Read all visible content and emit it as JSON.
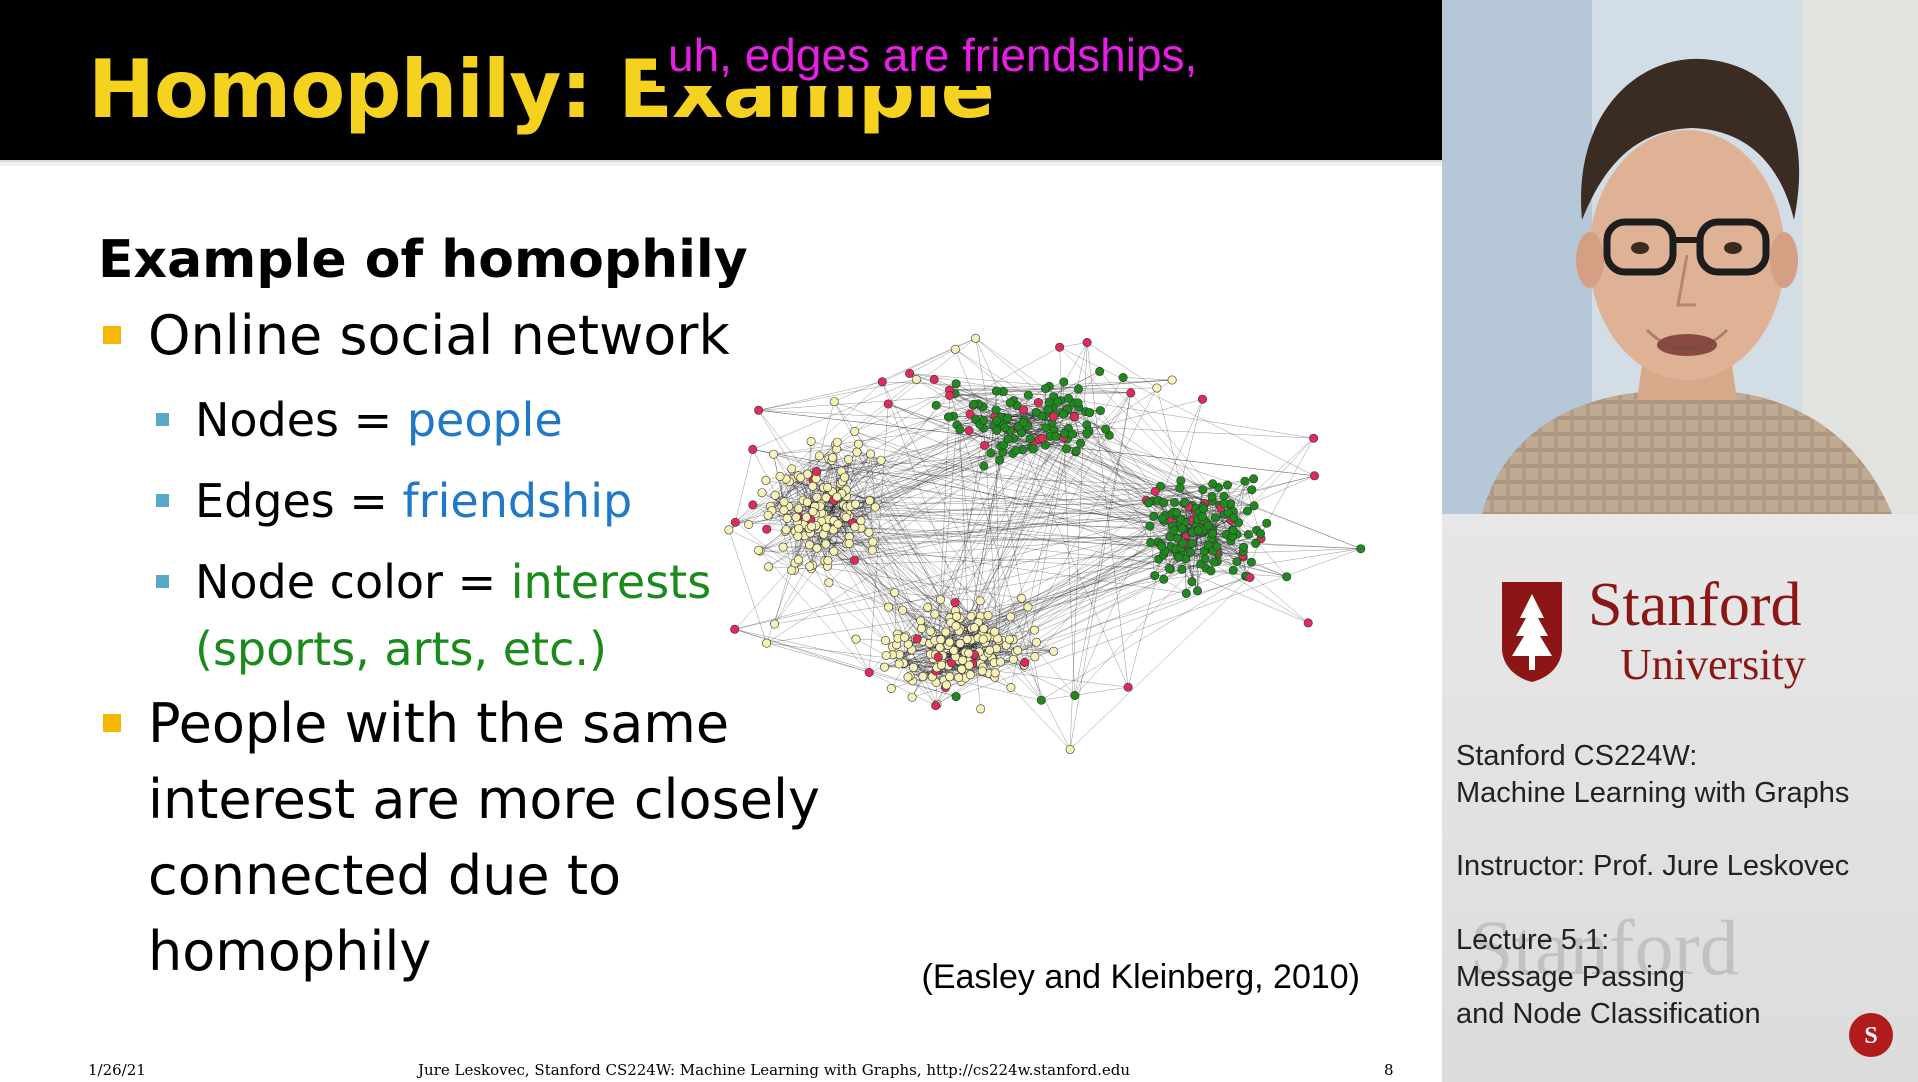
{
  "slide": {
    "title": "Homophily: Example",
    "caption": "uh, edges are friendships,",
    "heading": "Example of homophily",
    "bullets": {
      "b1": "Online social network",
      "nodes_prefix": "Nodes = ",
      "nodes_value": "people",
      "edges_prefix": "Edges = ",
      "edges_value": "friendship",
      "color_prefix": "Node color = ",
      "color_value": "interests",
      "color_value_line2": "(sports, arts, etc.)",
      "b2_line1": "People with the same",
      "b2_line2": "interest are more closely",
      "b2_line3": "connected due to",
      "b2_line4": "homophily"
    },
    "citation": "(Easley and Kleinberg, 2010)",
    "footer": {
      "date": "1/26/21",
      "center": "Jure Leskovec, Stanford CS224W: Machine Learning with Graphs, http://cs224w.stanford.edu",
      "page": "8"
    },
    "colors": {
      "title": "#f5d21f",
      "caption": "#e61ee6",
      "blue_text": "#1f78c8",
      "green_text": "#1a8a1a",
      "node_yellow": "#f7f1b5",
      "node_green": "#1e8a1e",
      "node_red": "#e02a5a"
    }
  },
  "panel": {
    "stanford_name": "Stanford",
    "stanford_univ": "University",
    "course_line1": "Stanford CS224W:",
    "course_line2": "Machine Learning with Graphs",
    "instructor": "Instructor: Prof. Jure Leskovec",
    "lecture_line1": "Lecture 5.1:",
    "lecture_line2": "Message Passing",
    "lecture_line3": "and Node Classification",
    "watermark": "Stanford"
  }
}
